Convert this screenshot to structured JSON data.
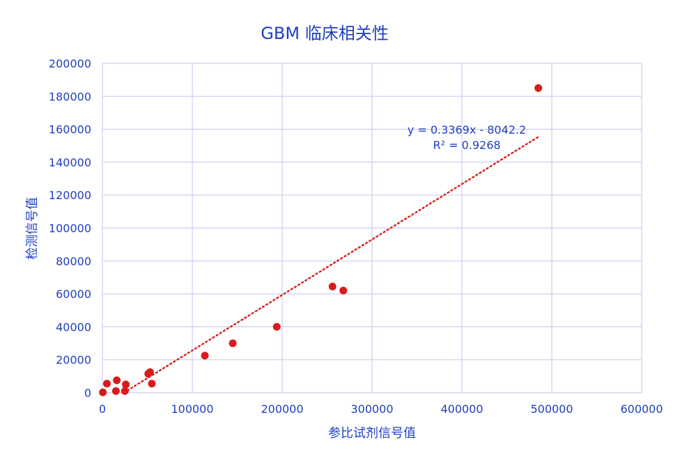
{
  "chart_data": {
    "type": "scatter",
    "title": "GBM 临床相关性",
    "xlabel": "参比试剂信号值",
    "ylabel": "检测信号值",
    "xlim": [
      0,
      600000
    ],
    "ylim": [
      0,
      200000
    ],
    "x_ticks": [
      "0",
      "100000",
      "200000",
      "300000",
      "400000",
      "500000",
      "600000"
    ],
    "y_ticks": [
      "0",
      "20000",
      "40000",
      "60000",
      "80000",
      "100000",
      "120000",
      "140000",
      "160000",
      "180000",
      "200000"
    ],
    "grid": true,
    "legend": "none",
    "colors": {
      "points": "#d81c1c",
      "trendline": "#d81c1c",
      "text": "#1f3fbf",
      "grid": "#c9cdf2"
    },
    "series": [
      {
        "points": [
          {
            "x": 500,
            "y": 200
          },
          {
            "x": 5000,
            "y": 5500
          },
          {
            "x": 15000,
            "y": 1000
          },
          {
            "x": 16000,
            "y": 7500
          },
          {
            "x": 25000,
            "y": 1000
          },
          {
            "x": 26000,
            "y": 5000
          },
          {
            "x": 51000,
            "y": 11500
          },
          {
            "x": 53000,
            "y": 12500
          },
          {
            "x": 55000,
            "y": 5500
          },
          {
            "x": 114000,
            "y": 22500
          },
          {
            "x": 145000,
            "y": 30000
          },
          {
            "x": 194000,
            "y": 40000
          },
          {
            "x": 256000,
            "y": 64500
          },
          {
            "x": 268000,
            "y": 62000
          },
          {
            "x": 485000,
            "y": 185000
          }
        ]
      }
    ],
    "trendline": {
      "type": "linear",
      "slope": 0.3369,
      "intercept": -8042.2,
      "x_range": [
        24000,
        485000
      ],
      "equation_text": "y = 0.3369x - 8042.2",
      "r2_text": "R² = 0.9268"
    }
  }
}
